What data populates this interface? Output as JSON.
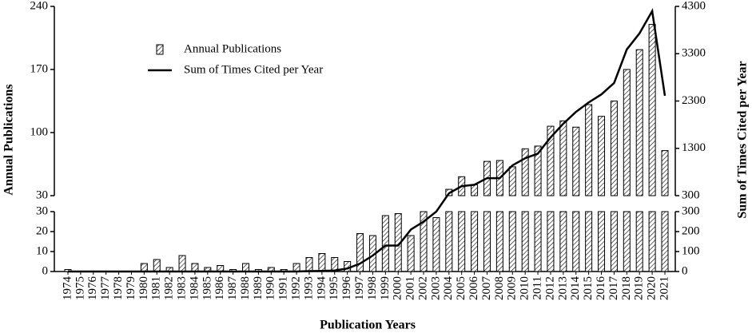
{
  "chart_data": {
    "type": "bar-line-broken",
    "xlabel": "Publication Years",
    "ylabel": "Annual Publications",
    "y2label": "Sum of Times Cited per Year",
    "categories": [
      "1974",
      "1975",
      "1976",
      "1977",
      "1978",
      "1979",
      "1980",
      "1981",
      "1982",
      "1983",
      "1984",
      "1985",
      "1986",
      "1987",
      "1988",
      "1989",
      "1990",
      "1991",
      "1992",
      "1993",
      "1994",
      "1995",
      "1996",
      "1997",
      "1998",
      "1999",
      "2000",
      "2001",
      "2002",
      "2003",
      "2004",
      "2005",
      "2006",
      "2007",
      "2008",
      "2009",
      "2010",
      "2011",
      "2012",
      "2013",
      "2014",
      "2015",
      "2016",
      "2017",
      "2018",
      "2019",
      "2020",
      "2021"
    ],
    "series": [
      {
        "name": "Annual Publications",
        "type": "bar",
        "color": "#000000",
        "values": [
          1,
          0,
          0,
          0,
          0,
          0,
          4,
          6,
          2,
          8,
          4,
          2,
          3,
          1,
          4,
          1,
          2,
          1,
          4,
          7,
          9,
          7,
          5,
          19,
          18,
          28,
          29,
          18,
          30,
          27,
          37,
          51,
          42,
          68,
          69,
          62,
          82,
          85,
          107,
          113,
          106,
          131,
          118,
          135,
          170,
          192,
          220,
          80
        ]
      },
      {
        "name": "Sum of Times Cited per Year",
        "type": "line",
        "axis": "y2",
        "color": "#000000",
        "values": [
          0,
          0,
          0,
          0,
          0,
          0,
          0,
          0,
          0,
          0,
          0,
          0,
          0,
          0,
          0,
          0,
          0,
          0,
          0,
          2,
          3,
          5,
          15,
          40,
          80,
          130,
          130,
          210,
          250,
          300,
          350,
          500,
          530,
          670,
          670,
          940,
          1090,
          1190,
          1530,
          1820,
          2070,
          2270,
          2440,
          2680,
          3390,
          3730,
          4200,
          2410
        ]
      }
    ],
    "ylim_lower": [
      0,
      30
    ],
    "yticks_lower": [
      0,
      10,
      20,
      30
    ],
    "ylim_upper": [
      30,
      240
    ],
    "yticks_upper": [
      30,
      100,
      170,
      240
    ],
    "y2lim_lower": [
      0,
      300
    ],
    "y2ticks_lower": [
      0,
      100,
      200,
      300
    ],
    "y2lim_upper": [
      300,
      4300
    ],
    "y2ticks_upper": [
      300,
      1300,
      2300,
      3300,
      4300
    ]
  }
}
